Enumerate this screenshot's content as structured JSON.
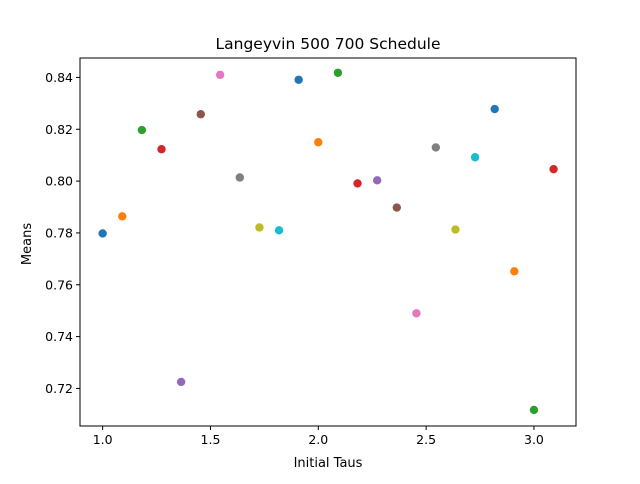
{
  "chart_data": {
    "type": "scatter",
    "title": "Langeyvin 500 700 Schedule",
    "xlabel": "Initial Taus",
    "ylabel": "Means",
    "xlim": [
      0.895,
      3.195
    ],
    "ylim": [
      0.7055,
      0.8475
    ],
    "xticks": [
      1.0,
      1.5,
      2.0,
      2.5,
      3.0
    ],
    "xtick_labels": [
      "1.0",
      "1.5",
      "2.0",
      "2.5",
      "3.0"
    ],
    "yticks": [
      0.72,
      0.74,
      0.76,
      0.78,
      0.8,
      0.82,
      0.84
    ],
    "ytick_labels": [
      "0.72",
      "0.74",
      "0.76",
      "0.78",
      "0.80",
      "0.82",
      "0.84"
    ],
    "grid": false,
    "points": [
      {
        "x": 1.0,
        "y": 0.7798,
        "color": "#1f77b4"
      },
      {
        "x": 1.091,
        "y": 0.7864,
        "color": "#ff7f0e"
      },
      {
        "x": 1.182,
        "y": 0.8197,
        "color": "#2ca02c"
      },
      {
        "x": 1.273,
        "y": 0.8123,
        "color": "#d62728"
      },
      {
        "x": 1.364,
        "y": 0.7225,
        "color": "#9467bd"
      },
      {
        "x": 1.455,
        "y": 0.8258,
        "color": "#8c564b"
      },
      {
        "x": 1.545,
        "y": 0.841,
        "color": "#e377c2"
      },
      {
        "x": 1.636,
        "y": 0.8014,
        "color": "#7f7f7f"
      },
      {
        "x": 1.727,
        "y": 0.7821,
        "color": "#bcbd22"
      },
      {
        "x": 1.818,
        "y": 0.781,
        "color": "#17becf"
      },
      {
        "x": 1.909,
        "y": 0.8391,
        "color": "#1f77b4"
      },
      {
        "x": 2.0,
        "y": 0.815,
        "color": "#ff7f0e"
      },
      {
        "x": 2.091,
        "y": 0.8418,
        "color": "#2ca02c"
      },
      {
        "x": 2.182,
        "y": 0.7991,
        "color": "#d62728"
      },
      {
        "x": 2.273,
        "y": 0.8003,
        "color": "#9467bd"
      },
      {
        "x": 2.364,
        "y": 0.7898,
        "color": "#8c564b"
      },
      {
        "x": 2.455,
        "y": 0.749,
        "color": "#e377c2"
      },
      {
        "x": 2.545,
        "y": 0.813,
        "color": "#7f7f7f"
      },
      {
        "x": 2.636,
        "y": 0.7813,
        "color": "#bcbd22"
      },
      {
        "x": 2.727,
        "y": 0.8092,
        "color": "#17becf"
      },
      {
        "x": 2.818,
        "y": 0.8278,
        "color": "#1f77b4"
      },
      {
        "x": 2.909,
        "y": 0.7652,
        "color": "#ff7f0e"
      },
      {
        "x": 3.0,
        "y": 0.7117,
        "color": "#2ca02c"
      },
      {
        "x": 3.091,
        "y": 0.8046,
        "color": "#d62728"
      }
    ]
  }
}
